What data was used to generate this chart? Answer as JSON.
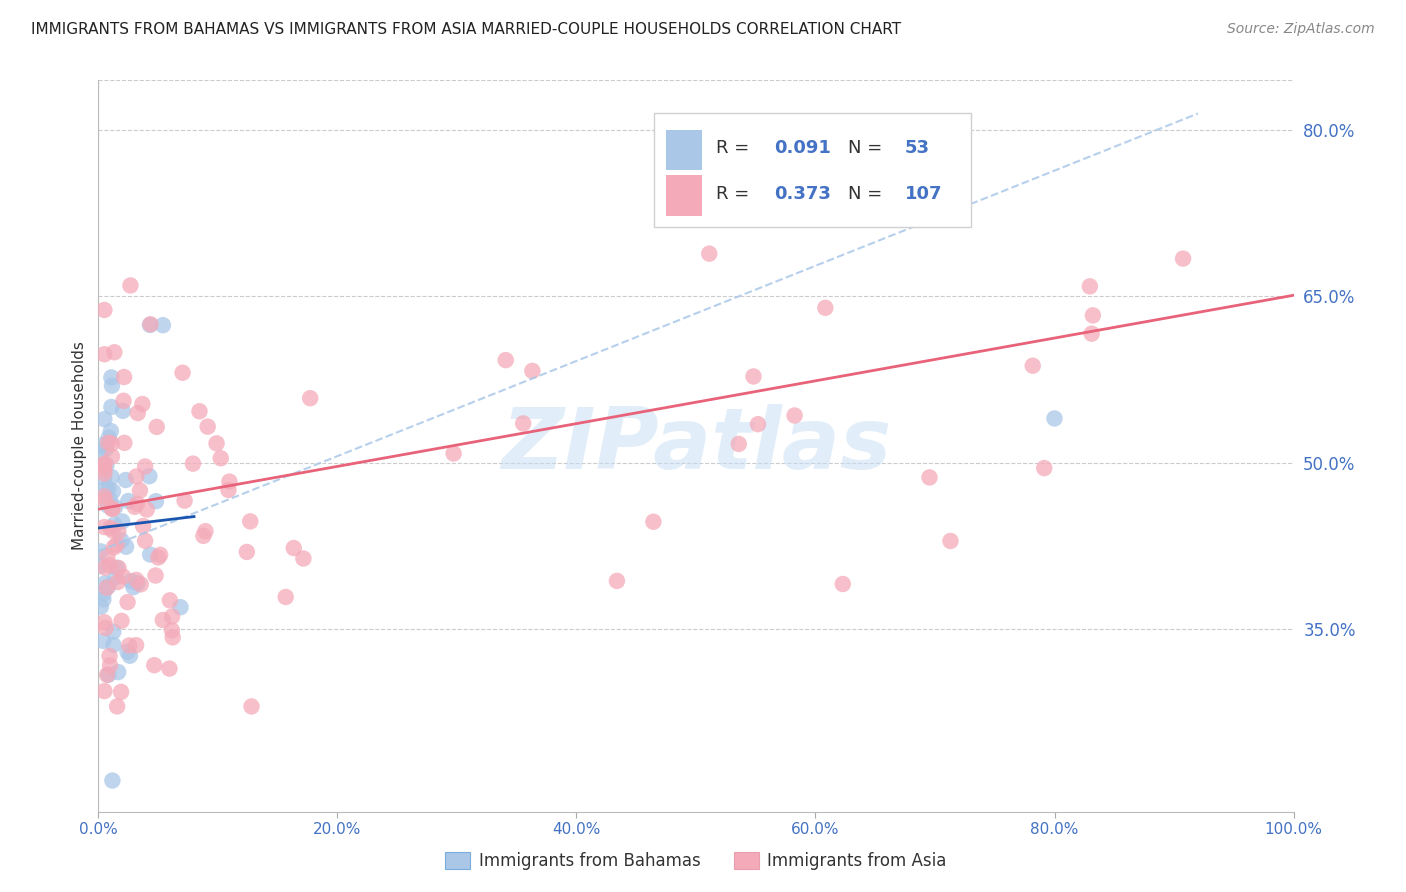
{
  "title": "IMMIGRANTS FROM BAHAMAS VS IMMIGRANTS FROM ASIA MARRIED-COUPLE HOUSEHOLDS CORRELATION CHART",
  "source": "Source: ZipAtlas.com",
  "ylabel": "Married-couple Households",
  "ytick_values": [
    0.35,
    0.5,
    0.65,
    0.8
  ],
  "ytick_labels": [
    "35.0%",
    "50.0%",
    "65.0%",
    "80.0%"
  ],
  "xtick_values": [
    0.0,
    0.2,
    0.4,
    0.6,
    0.8,
    1.0
  ],
  "xtick_labels": [
    "0.0%",
    "20.0%",
    "40.0%",
    "60.0%",
    "80.0%",
    "100.0%"
  ],
  "xlim": [
    0.0,
    1.0
  ],
  "ylim": [
    0.185,
    0.845
  ],
  "bahamas_R": 0.091,
  "bahamas_N": 53,
  "asia_R": 0.373,
  "asia_N": 107,
  "bahamas_color": "#aac7e8",
  "asia_color": "#f4aab8",
  "bahamas_line_color": "#1a56b0",
  "asia_line_color": "#e8637a",
  "dashed_line_color": "#aac7e8",
  "legend_label_bahamas": "Immigrants from Bahamas",
  "legend_label_asia": "Immigrants from Asia",
  "watermark": "ZIPatlas",
  "background_color": "#ffffff",
  "grid_color": "#cccccc",
  "title_color": "#222222",
  "axis_label_color": "#4472c4",
  "legend_text_color": "#4472c4",
  "legend_R_label_color": "#333333"
}
